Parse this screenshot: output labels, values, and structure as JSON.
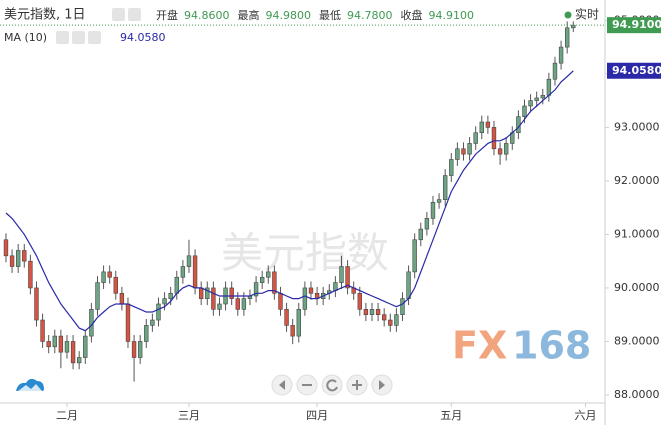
{
  "header": {
    "stats": [
      {
        "label": "开盘",
        "value": "94.8600"
      },
      {
        "label": "最高",
        "value": "94.9800"
      },
      {
        "label": "最低",
        "value": "94.7800"
      },
      {
        "label": "收盘",
        "value": "94.9100"
      }
    ],
    "ma_value": "94.0580",
    "realtime_label": "实时"
  },
  "watermark": "美元指数",
  "logo": {
    "left": "FX",
    "right": "168"
  },
  "chart_data": {
    "type": "candlestick",
    "title": "美元指数, 1日",
    "up_color": "#6ba583",
    "down_color": "#d75442",
    "open": [
      90.9,
      90.6,
      90.4,
      90.7,
      90.5,
      90.0,
      89.4,
      89.0,
      88.9,
      89.1,
      88.8,
      89.0,
      88.6,
      88.7,
      89.1,
      89.6,
      90.1,
      90.3,
      90.2,
      89.9,
      89.7,
      89.0,
      88.7,
      89.0,
      89.3,
      89.4,
      89.7,
      89.8,
      89.9,
      90.2,
      90.4,
      90.6,
      90.0,
      89.8,
      90.0,
      89.6,
      89.7,
      90.0,
      89.8,
      89.6,
      89.8,
      89.85,
      90.1,
      90.2,
      90.3,
      89.9,
      89.6,
      89.3,
      89.1,
      89.6,
      90.0,
      89.9,
      89.8,
      89.9,
      89.95,
      90.1,
      90.4,
      90.0,
      89.9,
      89.6,
      89.5,
      89.6,
      89.5,
      89.4,
      89.3,
      89.5,
      89.8,
      90.3,
      90.9,
      91.1,
      91.3,
      91.6,
      91.65,
      92.1,
      92.4,
      92.6,
      92.5,
      92.7,
      92.9,
      93.1,
      93.0,
      92.6,
      92.5,
      92.7,
      92.9,
      93.2,
      93.4,
      93.5,
      93.55,
      93.6,
      93.9,
      94.2,
      94.5,
      94.86
    ],
    "high": [
      91.02,
      90.72,
      90.82,
      90.82,
      90.62,
      90.12,
      89.52,
      89.12,
      89.22,
      89.22,
      89.12,
      89.12,
      88.82,
      89.22,
      89.72,
      90.22,
      90.42,
      90.42,
      90.32,
      90.02,
      89.82,
      89.12,
      89.12,
      89.42,
      89.52,
      89.82,
      89.92,
      90.02,
      90.32,
      90.52,
      90.9,
      90.72,
      90.12,
      90.12,
      90.12,
      89.82,
      90.12,
      90.12,
      89.92,
      89.92,
      89.97,
      90.22,
      90.32,
      90.42,
      90.42,
      90.02,
      89.72,
      89.42,
      89.72,
      90.12,
      90.12,
      90.02,
      90.02,
      90.07,
      90.22,
      90.6,
      90.52,
      90.12,
      90.02,
      89.72,
      89.72,
      89.72,
      89.62,
      89.52,
      89.62,
      89.92,
      90.42,
      91.02,
      91.22,
      91.42,
      91.72,
      91.77,
      92.22,
      92.52,
      92.72,
      92.72,
      92.82,
      93.02,
      93.22,
      93.22,
      93.12,
      92.72,
      92.82,
      93.02,
      93.32,
      93.52,
      93.62,
      93.67,
      93.72,
      94.02,
      94.32,
      94.62,
      94.98,
      94.98
    ],
    "low": [
      90.48,
      90.28,
      90.28,
      90.38,
      89.88,
      89.28,
      88.88,
      88.78,
      88.78,
      88.5,
      88.68,
      88.48,
      88.48,
      88.58,
      88.98,
      89.48,
      89.98,
      90.08,
      89.78,
      89.58,
      88.88,
      88.25,
      88.58,
      88.88,
      89.18,
      89.28,
      89.58,
      89.68,
      89.78,
      90.08,
      90.28,
      89.88,
      89.68,
      89.68,
      89.48,
      89.48,
      89.58,
      89.68,
      89.48,
      89.48,
      89.68,
      89.73,
      89.98,
      90.08,
      89.78,
      89.48,
      89.18,
      88.95,
      88.98,
      89.48,
      89.78,
      89.68,
      89.68,
      89.78,
      89.83,
      89.98,
      89.88,
      89.78,
      89.48,
      89.38,
      89.38,
      89.38,
      89.28,
      89.18,
      89.18,
      89.38,
      89.68,
      90.18,
      90.78,
      90.98,
      91.18,
      91.48,
      91.53,
      91.98,
      92.28,
      92.38,
      92.38,
      92.58,
      92.78,
      92.88,
      92.48,
      92.3,
      92.38,
      92.58,
      92.78,
      93.08,
      93.28,
      93.38,
      93.43,
      93.48,
      93.78,
      94.08,
      94.38,
      94.78
    ],
    "close": [
      90.6,
      90.4,
      90.7,
      90.5,
      90.0,
      89.4,
      89.0,
      88.9,
      89.1,
      88.8,
      89.0,
      88.6,
      88.7,
      89.1,
      89.6,
      90.1,
      90.3,
      90.2,
      89.9,
      89.7,
      89.0,
      88.7,
      89.0,
      89.3,
      89.4,
      89.7,
      89.8,
      89.9,
      90.2,
      90.4,
      90.6,
      90.0,
      89.8,
      90.0,
      89.6,
      89.7,
      90.0,
      89.8,
      89.6,
      89.8,
      89.85,
      90.1,
      90.2,
      90.3,
      89.9,
      89.6,
      89.3,
      89.1,
      89.6,
      90.0,
      89.9,
      89.8,
      89.9,
      89.95,
      90.1,
      90.4,
      90.0,
      89.9,
      89.6,
      89.5,
      89.6,
      89.5,
      89.4,
      89.3,
      89.5,
      89.8,
      90.3,
      90.9,
      91.1,
      91.3,
      91.6,
      91.65,
      92.1,
      92.4,
      92.6,
      92.5,
      92.7,
      92.9,
      93.1,
      93.0,
      92.6,
      92.5,
      92.7,
      92.9,
      93.2,
      93.4,
      93.5,
      93.55,
      93.6,
      93.9,
      94.2,
      94.5,
      94.86,
      94.91
    ],
    "ma": {
      "name": "MA (10)",
      "color": "#2a2aa8",
      "values": [
        91.4,
        91.3,
        91.15,
        91.0,
        90.8,
        90.6,
        90.35,
        90.1,
        89.9,
        89.7,
        89.55,
        89.4,
        89.25,
        89.2,
        89.3,
        89.45,
        89.55,
        89.65,
        89.7,
        89.7,
        89.7,
        89.65,
        89.6,
        89.55,
        89.55,
        89.6,
        89.65,
        89.75,
        89.9,
        90.0,
        90.05,
        90.0,
        90.0,
        89.95,
        89.9,
        89.85,
        89.85,
        89.85,
        89.85,
        89.85,
        89.85,
        89.9,
        89.9,
        89.95,
        89.95,
        89.9,
        89.85,
        89.8,
        89.8,
        89.85,
        89.8,
        89.8,
        89.85,
        89.9,
        89.95,
        90.0,
        90.05,
        90.0,
        89.95,
        89.9,
        89.85,
        89.8,
        89.75,
        89.7,
        89.65,
        89.7,
        89.8,
        90.0,
        90.3,
        90.6,
        90.9,
        91.2,
        91.5,
        91.8,
        92.0,
        92.2,
        92.35,
        92.5,
        92.6,
        92.7,
        92.75,
        92.75,
        92.8,
        92.9,
        93.0,
        93.15,
        93.3,
        93.4,
        93.5,
        93.6,
        93.7,
        93.85,
        93.95,
        94.058
      ]
    },
    "xlim": [
      -0.98,
      98.2
    ],
    "xticks": [
      {
        "value": 10,
        "label": "二月"
      },
      {
        "value": 30,
        "label": "三月"
      },
      {
        "value": 51,
        "label": "四月"
      },
      {
        "value": 73,
        "label": "五月"
      },
      {
        "value": 95,
        "label": "六月"
      }
    ],
    "ylim": [
      87.85,
      95.38
    ],
    "yticks": [
      {
        "value": 88,
        "label": "88.0000"
      },
      {
        "value": 89,
        "label": "89.0000"
      },
      {
        "value": 90,
        "label": "90.0000"
      },
      {
        "value": 91,
        "label": "91.0000"
      },
      {
        "value": 92,
        "label": "92.0000"
      },
      {
        "value": 93,
        "label": "93.0000"
      },
      {
        "value": 94,
        "label": "94.0000"
      },
      {
        "value": 95,
        "label": "95.0000"
      }
    ]
  }
}
